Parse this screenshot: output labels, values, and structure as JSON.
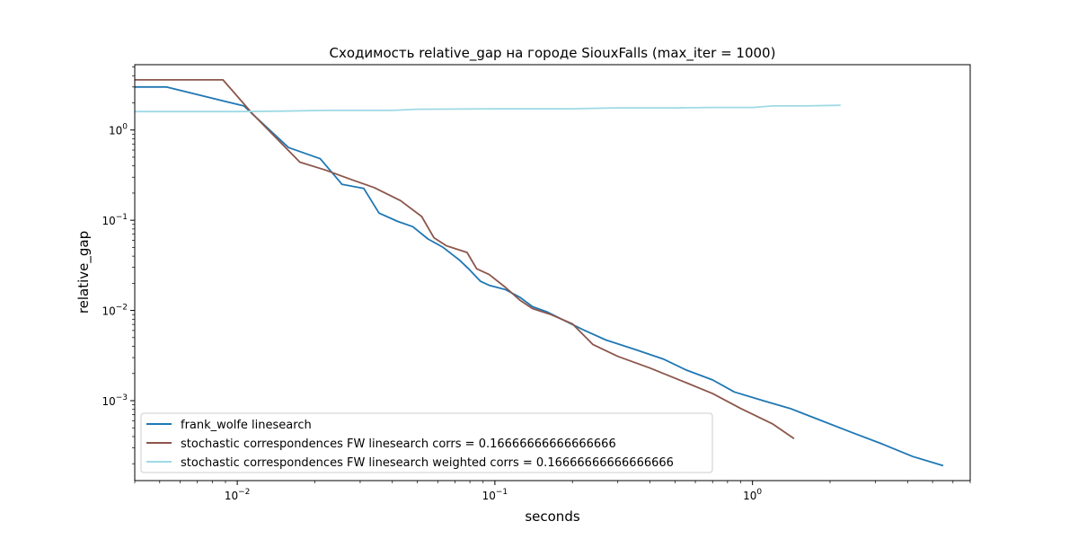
{
  "chart_data": {
    "type": "line",
    "title": "Сходимость relative_gap на городе SiouxFalls  (max_iter = 1000)",
    "xlabel": "seconds",
    "ylabel": "relative_gap",
    "xscale": "log",
    "yscale": "log",
    "xlim": [
      0.004,
      7
    ],
    "ylim": [
      0.00013,
      5.3
    ],
    "x_ticks": [
      {
        "value": 0.01,
        "base": "10",
        "exp": "−2"
      },
      {
        "value": 0.1,
        "base": "10",
        "exp": "−1"
      },
      {
        "value": 1,
        "base": "10",
        "exp": "0"
      }
    ],
    "y_ticks": [
      {
        "value": 0.001,
        "base": "10",
        "exp": "−3"
      },
      {
        "value": 0.01,
        "base": "10",
        "exp": "−2"
      },
      {
        "value": 0.1,
        "base": "10",
        "exp": "−1"
      },
      {
        "value": 1,
        "base": "10",
        "exp": "0"
      }
    ],
    "grid": false,
    "legend_position": "lower-left",
    "series": [
      {
        "name": "frank_wolfe linesearch",
        "color": "#1f77b4",
        "x": [
          0.004,
          0.0053,
          0.0106,
          0.0158,
          0.021,
          0.0255,
          0.031,
          0.0355,
          0.042,
          0.048,
          0.055,
          0.063,
          0.073,
          0.08,
          0.088,
          0.095,
          0.11,
          0.125,
          0.14,
          0.16,
          0.19,
          0.22,
          0.27,
          0.35,
          0.45,
          0.55,
          0.7,
          0.85,
          1.1,
          1.4,
          1.8,
          2.4,
          3.2,
          4.2,
          5.5
        ],
        "y": [
          3.0,
          3.0,
          1.85,
          0.64,
          0.48,
          0.25,
          0.225,
          0.12,
          0.097,
          0.085,
          0.062,
          0.05,
          0.036,
          0.028,
          0.021,
          0.019,
          0.017,
          0.014,
          0.011,
          0.0096,
          0.0075,
          0.0061,
          0.0047,
          0.0037,
          0.0029,
          0.0022,
          0.0017,
          0.00125,
          0.001,
          0.00082,
          0.00062,
          0.00045,
          0.00033,
          0.00024,
          0.00019
        ]
      },
      {
        "name": "stochastic correspondences FW linesearch corrs = 0.16666666666666666",
        "color": "#8c564b",
        "x": [
          0.004,
          0.0088,
          0.0115,
          0.0175,
          0.022,
          0.028,
          0.034,
          0.043,
          0.052,
          0.058,
          0.065,
          0.078,
          0.085,
          0.095,
          0.11,
          0.125,
          0.14,
          0.165,
          0.2,
          0.24,
          0.3,
          0.4,
          0.52,
          0.7,
          0.9,
          1.2,
          1.45
        ],
        "y": [
          3.6,
          3.6,
          1.5,
          0.44,
          0.36,
          0.28,
          0.23,
          0.165,
          0.11,
          0.064,
          0.052,
          0.044,
          0.029,
          0.025,
          0.018,
          0.013,
          0.0105,
          0.009,
          0.0071,
          0.0042,
          0.0031,
          0.0023,
          0.0017,
          0.0012,
          0.00082,
          0.00055,
          0.00038
        ]
      },
      {
        "name": "stochastic correspondences FW linesearch weighted corrs = 0.16666666666666666",
        "color": "#9edae5",
        "x": [
          0.004,
          0.007,
          0.01,
          0.015,
          0.022,
          0.04,
          0.05,
          0.1,
          0.2,
          0.29,
          0.5,
          0.7,
          1.0,
          1.2,
          1.6,
          2.2
        ],
        "y": [
          1.6,
          1.6,
          1.6,
          1.62,
          1.65,
          1.65,
          1.7,
          1.72,
          1.72,
          1.76,
          1.76,
          1.78,
          1.78,
          1.85,
          1.85,
          1.88
        ]
      }
    ]
  }
}
